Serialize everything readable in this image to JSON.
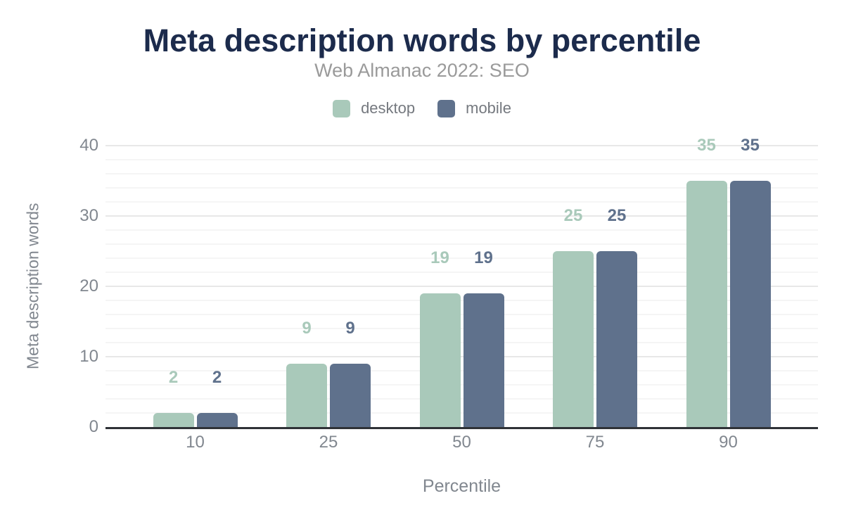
{
  "colors": {
    "title-color": "#1c2b4c",
    "subtitle-color": "#9a9a9a",
    "legend-text": "#75797f",
    "axis-text": "#81878f",
    "axis-line": "#2f3237",
    "grid-major": "#e8e8e8",
    "grid-minor": "#f5f5f5"
  },
  "chart_data": {
    "type": "bar",
    "title": "Meta description words by percentile",
    "subtitle": "Web Almanac 2022: SEO",
    "xlabel": "Percentile",
    "ylabel": "Meta description words",
    "categories": [
      "10",
      "25",
      "50",
      "75",
      "90"
    ],
    "series": [
      {
        "name": "desktop",
        "color": "#a9c9ba",
        "values": [
          2,
          9,
          19,
          25,
          35
        ]
      },
      {
        "name": "mobile",
        "color": "#5f718c",
        "values": [
          2,
          9,
          19,
          25,
          35
        ]
      }
    ],
    "ylim": [
      0,
      40
    ],
    "yticks": [
      0,
      10,
      20,
      30,
      40
    ],
    "minor_tick_interval": 2,
    "grid": true,
    "legend_position": "top",
    "data_labels": true
  }
}
